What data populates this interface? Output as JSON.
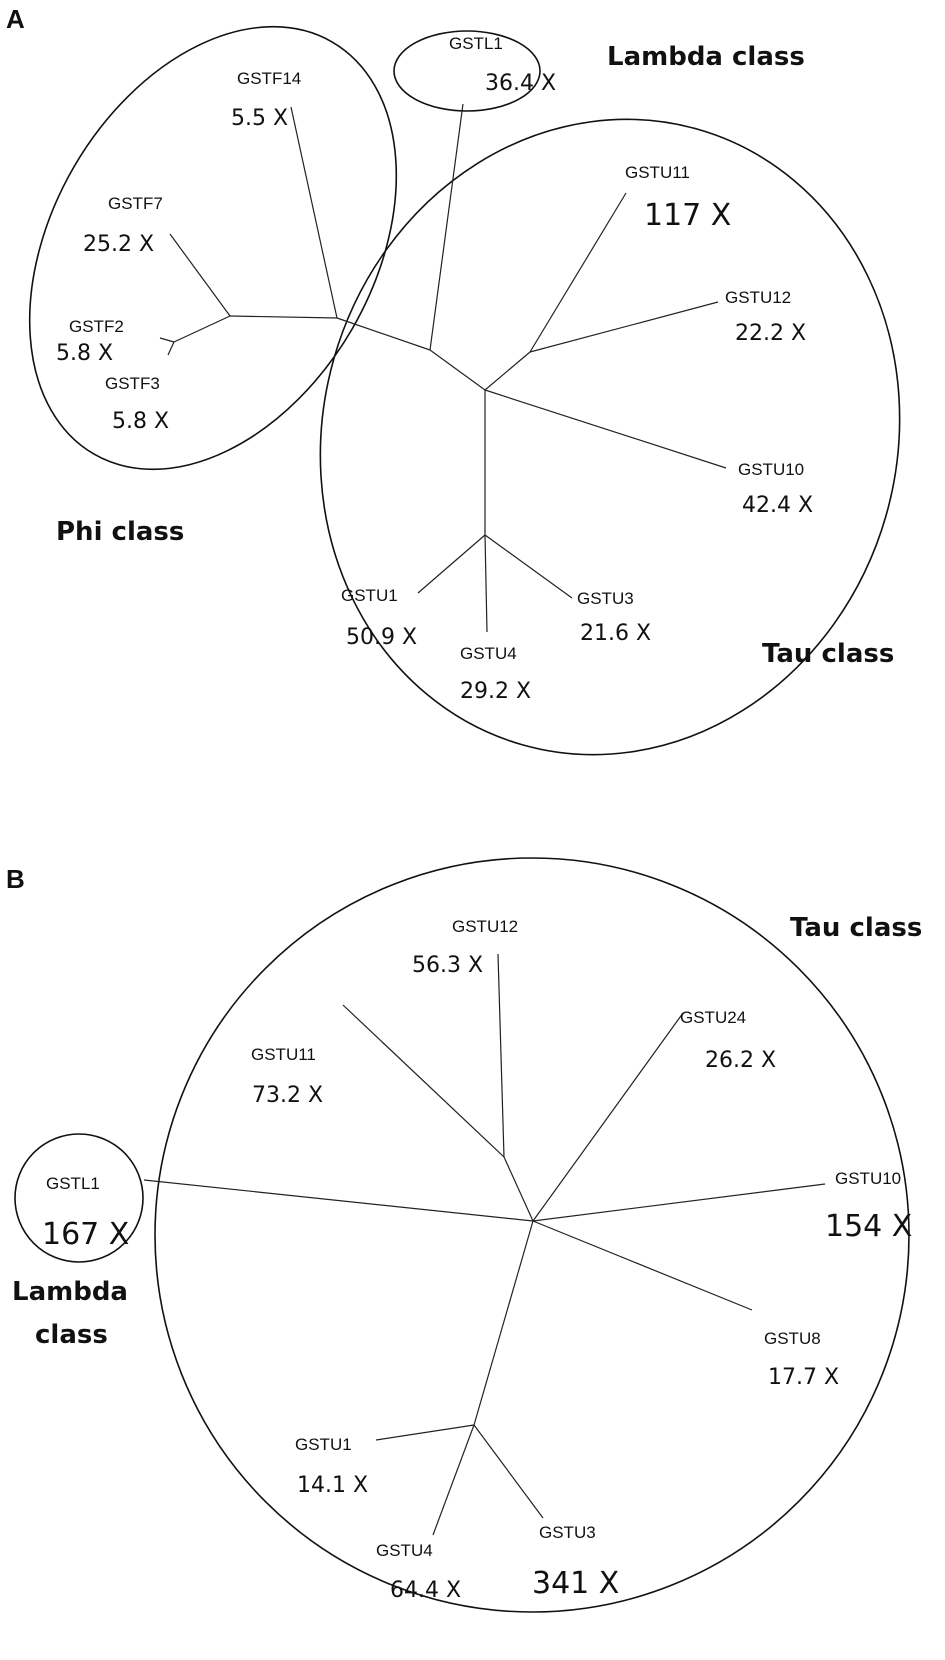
{
  "panel_a": {
    "label": "A",
    "classes": {
      "phi": "Phi class",
      "lambda": "Lambda class",
      "tau": "Tau class"
    },
    "genes": [
      {
        "name": "GSTF14",
        "fold": "5.5 X"
      },
      {
        "name": "GSTF7",
        "fold": "25.2 X"
      },
      {
        "name": "GSTF2",
        "fold": "5.8 X"
      },
      {
        "name": "GSTF3",
        "fold": "5.8 X"
      },
      {
        "name": "GSTL1",
        "fold": "36.4 X"
      },
      {
        "name": "GSTU11",
        "fold": "117 X"
      },
      {
        "name": "GSTU12",
        "fold": "22.2 X"
      },
      {
        "name": "GSTU10",
        "fold": "42.4 X"
      },
      {
        "name": "GSTU1",
        "fold": "50.9 X"
      },
      {
        "name": "GSTU3",
        "fold": "21.6 X"
      },
      {
        "name": "GSTU4",
        "fold": "29.2 X"
      }
    ]
  },
  "panel_b": {
    "label": "B",
    "classes": {
      "tau": "Tau class",
      "lambda_line1": "Lambda",
      "lambda_line2": "class"
    },
    "genes": [
      {
        "name": "GSTL1",
        "fold": "167 X"
      },
      {
        "name": "GSTU12",
        "fold": "56.3 X"
      },
      {
        "name": "GSTU11",
        "fold": "73.2 X"
      },
      {
        "name": "GSTU24",
        "fold": "26.2 X"
      },
      {
        "name": "GSTU10",
        "fold": "154 X"
      },
      {
        "name": "GSTU8",
        "fold": "17.7 X"
      },
      {
        "name": "GSTU1",
        "fold": "14.1 X"
      },
      {
        "name": "GSTU4",
        "fold": "64.4 X"
      },
      {
        "name": "GSTU3",
        "fold": "341 X"
      }
    ]
  }
}
